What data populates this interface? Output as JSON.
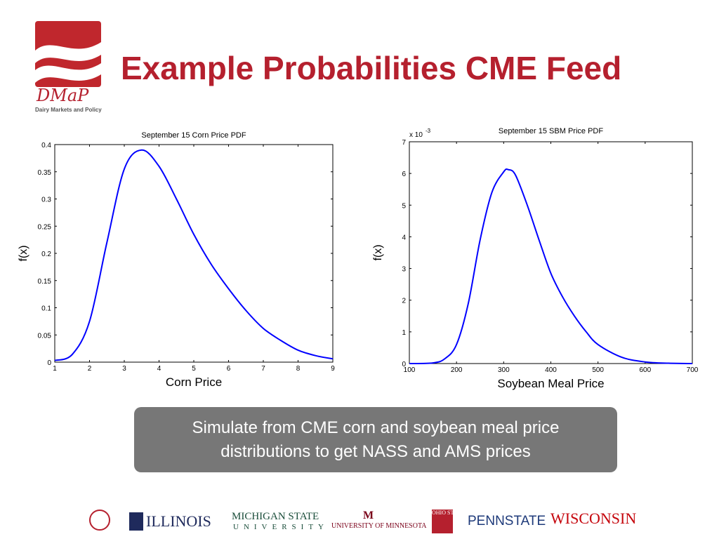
{
  "title": "Example Probabilities CME Feed",
  "logo": {
    "name": "DMaP",
    "subtitle": "Dairy Markets and Policy"
  },
  "banner": {
    "line1": "Simulate from CME corn and soybean meal price",
    "line2": "distributions to get NASS and AMS prices"
  },
  "colors": {
    "accent": "#b5202e",
    "line": "#0000ff",
    "banner": "#777777"
  },
  "chart_data": [
    {
      "type": "line",
      "title": "September 15 Corn Price PDF",
      "xlabel": "Corn Price",
      "ylabel": "f(x)",
      "xlim": [
        1,
        9
      ],
      "ylim": [
        0,
        0.4
      ],
      "xticks": [
        "1",
        "2",
        "3",
        "4",
        "5",
        "6",
        "7",
        "8",
        "9"
      ],
      "yticks": [
        "0",
        "0.05",
        "0.1",
        "0.15",
        "0.2",
        "0.25",
        "0.3",
        "0.35",
        "0.4"
      ],
      "x": [
        1,
        1.5,
        2,
        2.5,
        3,
        3.5,
        4,
        4.5,
        5,
        5.5,
        6,
        6.5,
        7,
        7.5,
        8,
        8.5,
        9
      ],
      "y": [
        0.003,
        0.014,
        0.075,
        0.22,
        0.355,
        0.39,
        0.36,
        0.3,
        0.235,
        0.18,
        0.135,
        0.095,
        0.062,
        0.04,
        0.022,
        0.012,
        0.006
      ]
    },
    {
      "type": "line",
      "title": "September 15 SBM Price PDF",
      "xlabel": "Soybean Meal Price",
      "ylabel": "f(x)",
      "multiplier": "x 10",
      "multiplier_exp": "-3",
      "xlim": [
        100,
        700
      ],
      "ylim": [
        0,
        7
      ],
      "xticks": [
        "100",
        "200",
        "300",
        "400",
        "500",
        "600",
        "700"
      ],
      "yticks": [
        "0",
        "1",
        "2",
        "3",
        "4",
        "5",
        "6",
        "7"
      ],
      "x": [
        100,
        150,
        175,
        200,
        225,
        250,
        275,
        300,
        310,
        325,
        350,
        375,
        400,
        425,
        450,
        475,
        500,
        550,
        600,
        650,
        700
      ],
      "y": [
        0,
        0.02,
        0.15,
        0.6,
        1.9,
        3.9,
        5.4,
        6.05,
        6.12,
        5.95,
        5.0,
        3.9,
        2.85,
        2.1,
        1.5,
        1.0,
        0.6,
        0.2,
        0.05,
        0.01,
        0
      ]
    }
  ],
  "logos": [
    "Cornell seal",
    "ILLINOIS",
    "MICHIGAN STATE",
    "UNIVERSITY",
    "UNIVERSITY OF MINNESOTA",
    "OHIO STATE",
    "PENNSTATE",
    "WISCONSIN"
  ]
}
